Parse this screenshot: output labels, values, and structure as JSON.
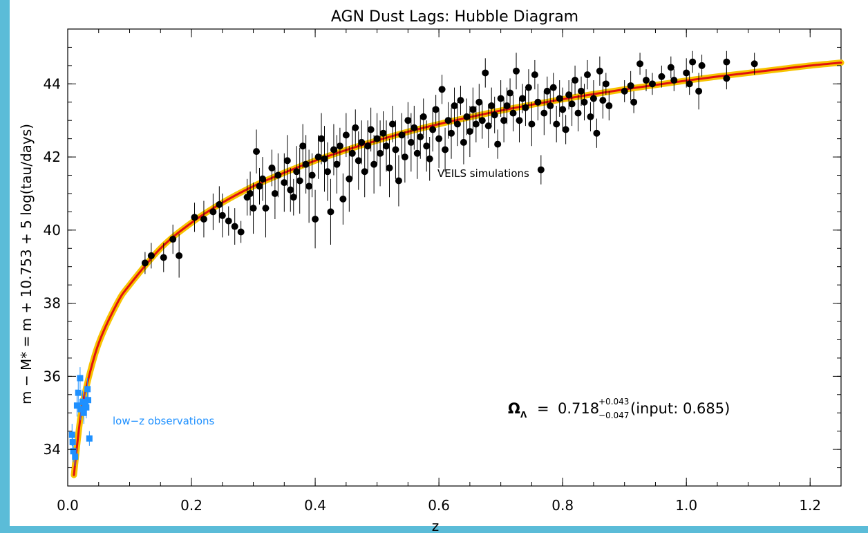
{
  "colors": {
    "frame": "#5bbcd8",
    "low_z": "#1e90ff",
    "veils": "#000000",
    "fit_line": "#e01010",
    "fit_band": "#f7c300"
  },
  "chart_data": {
    "type": "scatter",
    "title": "AGN Dust Lags: Hubble Diagram",
    "xlabel": "z",
    "ylabel": "m − M* = m + 10.753 + 5 log(tau/days)",
    "xlim": [
      0.0,
      1.25
    ],
    "ylim": [
      33.0,
      45.5
    ],
    "x_ticks": [
      0.0,
      0.2,
      0.4,
      0.6,
      0.8,
      1.0,
      1.2
    ],
    "x_tick_labels": [
      "0.0",
      "0.2",
      "0.4",
      "0.6",
      "0.8",
      "1.0",
      "1.2"
    ],
    "y_ticks": [
      34,
      36,
      38,
      40,
      42,
      44
    ],
    "y_tick_labels": [
      "34",
      "36",
      "38",
      "40",
      "42",
      "44"
    ],
    "grid": false,
    "annotations": {
      "veils_label": "VEILS simulations",
      "low_z_label": "low−z observations",
      "omega_symbol": "Ω",
      "omega_sub": "Λ",
      "omega_eq": "=",
      "omega_value": "0.718",
      "omega_err_up": "+0.043",
      "omega_err_down": "−0.047",
      "omega_input": "(input: 0.685)"
    },
    "model_curve": {
      "name": "",
      "omega_lambda": 0.718,
      "x": [
        0.01,
        0.02,
        0.03,
        0.05,
        0.08,
        0.1,
        0.15,
        0.2,
        0.25,
        0.3,
        0.35,
        0.4,
        0.45,
        0.5,
        0.55,
        0.6,
        0.65,
        0.7,
        0.75,
        0.8,
        0.85,
        0.9,
        0.95,
        1.0,
        1.05,
        1.1,
        1.15,
        1.2,
        1.25
      ],
      "y": [
        33.3,
        34.8,
        35.7,
        36.9,
        38.0,
        38.5,
        39.5,
        40.2,
        40.75,
        41.2,
        41.57,
        41.9,
        42.19,
        42.45,
        42.69,
        42.9,
        43.09,
        43.27,
        43.43,
        43.58,
        43.72,
        43.85,
        43.97,
        44.09,
        44.2,
        44.3,
        44.4,
        44.5,
        44.58
      ]
    },
    "series": [
      {
        "name": "low−z observations",
        "marker": "square",
        "points": [
          [
            0.007,
            34.4,
            0.3
          ],
          [
            0.008,
            34.2,
            0.3
          ],
          [
            0.009,
            33.95,
            0.3
          ],
          [
            0.012,
            33.8,
            0.25
          ],
          [
            0.015,
            35.2,
            0.3
          ],
          [
            0.017,
            35.55,
            0.35
          ],
          [
            0.02,
            35.95,
            0.3
          ],
          [
            0.021,
            35.1,
            0.3
          ],
          [
            0.024,
            35.3,
            0.3
          ],
          [
            0.026,
            35.0,
            0.3
          ],
          [
            0.028,
            35.25,
            0.3
          ],
          [
            0.03,
            35.15,
            0.3
          ],
          [
            0.032,
            35.65,
            0.3
          ],
          [
            0.033,
            35.35,
            0.25
          ],
          [
            0.035,
            34.3,
            0.2
          ]
        ]
      },
      {
        "name": "VEILS simulations",
        "marker": "circle",
        "points": [
          [
            0.125,
            39.1,
            0.3
          ],
          [
            0.135,
            39.3,
            0.35
          ],
          [
            0.155,
            39.25,
            0.4
          ],
          [
            0.17,
            39.75,
            0.4
          ],
          [
            0.18,
            39.3,
            0.6
          ],
          [
            0.205,
            40.35,
            0.4
          ],
          [
            0.22,
            40.3,
            0.5
          ],
          [
            0.235,
            40.5,
            0.5
          ],
          [
            0.245,
            40.7,
            0.5
          ],
          [
            0.25,
            40.4,
            0.6
          ],
          [
            0.26,
            40.25,
            0.4
          ],
          [
            0.27,
            40.1,
            0.5
          ],
          [
            0.28,
            39.95,
            0.3
          ],
          [
            0.29,
            40.9,
            0.5
          ],
          [
            0.295,
            41.0,
            0.6
          ],
          [
            0.3,
            40.6,
            0.7
          ],
          [
            0.305,
            42.15,
            0.6
          ],
          [
            0.31,
            41.2,
            0.5
          ],
          [
            0.315,
            41.4,
            0.6
          ],
          [
            0.32,
            40.6,
            0.8
          ],
          [
            0.33,
            41.7,
            0.5
          ],
          [
            0.335,
            41.0,
            0.7
          ],
          [
            0.34,
            41.5,
            0.6
          ],
          [
            0.35,
            41.3,
            0.8
          ],
          [
            0.355,
            41.9,
            0.7
          ],
          [
            0.36,
            41.1,
            0.6
          ],
          [
            0.365,
            40.9,
            0.5
          ],
          [
            0.37,
            41.6,
            0.7
          ],
          [
            0.375,
            41.35,
            0.9
          ],
          [
            0.38,
            42.3,
            0.6
          ],
          [
            0.385,
            41.8,
            0.8
          ],
          [
            0.39,
            41.2,
            1.0
          ],
          [
            0.395,
            41.5,
            0.6
          ],
          [
            0.4,
            40.3,
            0.8
          ],
          [
            0.405,
            42.0,
            0.6
          ],
          [
            0.41,
            42.5,
            0.7
          ],
          [
            0.415,
            41.95,
            0.9
          ],
          [
            0.42,
            41.6,
            0.8
          ],
          [
            0.425,
            40.5,
            0.9
          ],
          [
            0.43,
            42.2,
            0.7
          ],
          [
            0.435,
            41.8,
            0.8
          ],
          [
            0.44,
            42.3,
            0.5
          ],
          [
            0.445,
            40.85,
            0.7
          ],
          [
            0.45,
            42.6,
            0.6
          ],
          [
            0.455,
            41.4,
            0.9
          ],
          [
            0.46,
            42.1,
            0.7
          ],
          [
            0.465,
            42.8,
            0.5
          ],
          [
            0.47,
            41.9,
            0.8
          ],
          [
            0.475,
            42.4,
            0.6
          ],
          [
            0.48,
            41.6,
            0.7
          ],
          [
            0.485,
            42.3,
            0.7
          ],
          [
            0.49,
            42.75,
            0.6
          ],
          [
            0.495,
            41.8,
            0.8
          ],
          [
            0.5,
            42.5,
            0.7
          ],
          [
            0.505,
            42.1,
            0.9
          ],
          [
            0.51,
            42.65,
            0.6
          ],
          [
            0.515,
            42.3,
            0.7
          ],
          [
            0.52,
            41.7,
            0.8
          ],
          [
            0.525,
            42.9,
            0.5
          ],
          [
            0.53,
            42.2,
            0.8
          ],
          [
            0.535,
            41.35,
            0.7
          ],
          [
            0.54,
            42.6,
            0.6
          ],
          [
            0.545,
            42.0,
            0.7
          ],
          [
            0.55,
            43.0,
            0.5
          ],
          [
            0.555,
            42.4,
            0.8
          ],
          [
            0.56,
            42.8,
            0.6
          ],
          [
            0.565,
            42.1,
            0.7
          ],
          [
            0.57,
            42.55,
            0.6
          ],
          [
            0.575,
            43.1,
            0.5
          ],
          [
            0.58,
            42.3,
            0.7
          ],
          [
            0.585,
            41.95,
            0.6
          ],
          [
            0.59,
            42.75,
            0.6
          ],
          [
            0.595,
            43.3,
            0.4
          ],
          [
            0.6,
            42.5,
            0.8
          ],
          [
            0.605,
            43.85,
            0.4
          ],
          [
            0.61,
            42.2,
            0.6
          ],
          [
            0.615,
            43.0,
            0.5
          ],
          [
            0.62,
            42.65,
            0.7
          ],
          [
            0.625,
            43.4,
            0.5
          ],
          [
            0.63,
            42.9,
            0.6
          ],
          [
            0.635,
            43.55,
            0.4
          ],
          [
            0.64,
            42.4,
            0.6
          ],
          [
            0.645,
            43.1,
            0.5
          ],
          [
            0.65,
            42.7,
            0.7
          ],
          [
            0.655,
            43.3,
            0.6
          ],
          [
            0.66,
            42.9,
            0.5
          ],
          [
            0.665,
            43.5,
            0.5
          ],
          [
            0.67,
            43.0,
            0.5
          ],
          [
            0.675,
            44.3,
            0.4
          ],
          [
            0.68,
            42.85,
            0.6
          ],
          [
            0.685,
            43.4,
            0.5
          ],
          [
            0.69,
            43.15,
            0.5
          ],
          [
            0.695,
            42.35,
            0.4
          ],
          [
            0.7,
            43.6,
            0.5
          ],
          [
            0.705,
            43.0,
            0.6
          ],
          [
            0.71,
            43.4,
            0.5
          ],
          [
            0.715,
            43.75,
            0.4
          ],
          [
            0.72,
            43.2,
            0.5
          ],
          [
            0.725,
            44.35,
            0.5
          ],
          [
            0.73,
            43.0,
            0.6
          ],
          [
            0.735,
            43.6,
            0.4
          ],
          [
            0.74,
            43.35,
            0.5
          ],
          [
            0.745,
            43.9,
            0.5
          ],
          [
            0.75,
            42.9,
            0.6
          ],
          [
            0.755,
            44.25,
            0.4
          ],
          [
            0.76,
            43.5,
            0.5
          ],
          [
            0.765,
            41.65,
            0.4
          ],
          [
            0.77,
            43.2,
            0.6
          ],
          [
            0.775,
            43.8,
            0.4
          ],
          [
            0.78,
            43.4,
            0.5
          ],
          [
            0.785,
            43.9,
            0.4
          ],
          [
            0.79,
            42.9,
            0.5
          ],
          [
            0.795,
            43.6,
            0.5
          ],
          [
            0.8,
            43.3,
            0.6
          ],
          [
            0.805,
            42.75,
            0.4
          ],
          [
            0.81,
            43.7,
            0.4
          ],
          [
            0.815,
            43.45,
            0.6
          ],
          [
            0.82,
            44.1,
            0.4
          ],
          [
            0.825,
            43.2,
            0.5
          ],
          [
            0.83,
            43.8,
            0.4
          ],
          [
            0.835,
            43.5,
            0.5
          ],
          [
            0.84,
            44.25,
            0.4
          ],
          [
            0.845,
            43.1,
            0.4
          ],
          [
            0.85,
            43.6,
            0.5
          ],
          [
            0.855,
            42.65,
            0.4
          ],
          [
            0.86,
            44.35,
            0.4
          ],
          [
            0.865,
            43.55,
            0.5
          ],
          [
            0.87,
            44.0,
            0.3
          ],
          [
            0.875,
            43.4,
            0.4
          ],
          [
            0.9,
            43.8,
            0.3
          ],
          [
            0.91,
            43.95,
            0.4
          ],
          [
            0.915,
            43.5,
            0.3
          ],
          [
            0.925,
            44.55,
            0.3
          ],
          [
            0.935,
            44.1,
            0.3
          ],
          [
            0.945,
            44.0,
            0.3
          ],
          [
            0.96,
            44.2,
            0.3
          ],
          [
            0.975,
            44.45,
            0.3
          ],
          [
            0.98,
            44.1,
            0.3
          ],
          [
            1.0,
            44.3,
            0.4
          ],
          [
            1.005,
            44.0,
            0.3
          ],
          [
            1.01,
            44.6,
            0.3
          ],
          [
            1.02,
            43.8,
            0.5
          ],
          [
            1.025,
            44.5,
            0.3
          ],
          [
            1.065,
            44.6,
            0.3
          ],
          [
            1.065,
            44.15,
            0.3
          ],
          [
            1.11,
            44.55,
            0.3
          ]
        ]
      }
    ]
  }
}
